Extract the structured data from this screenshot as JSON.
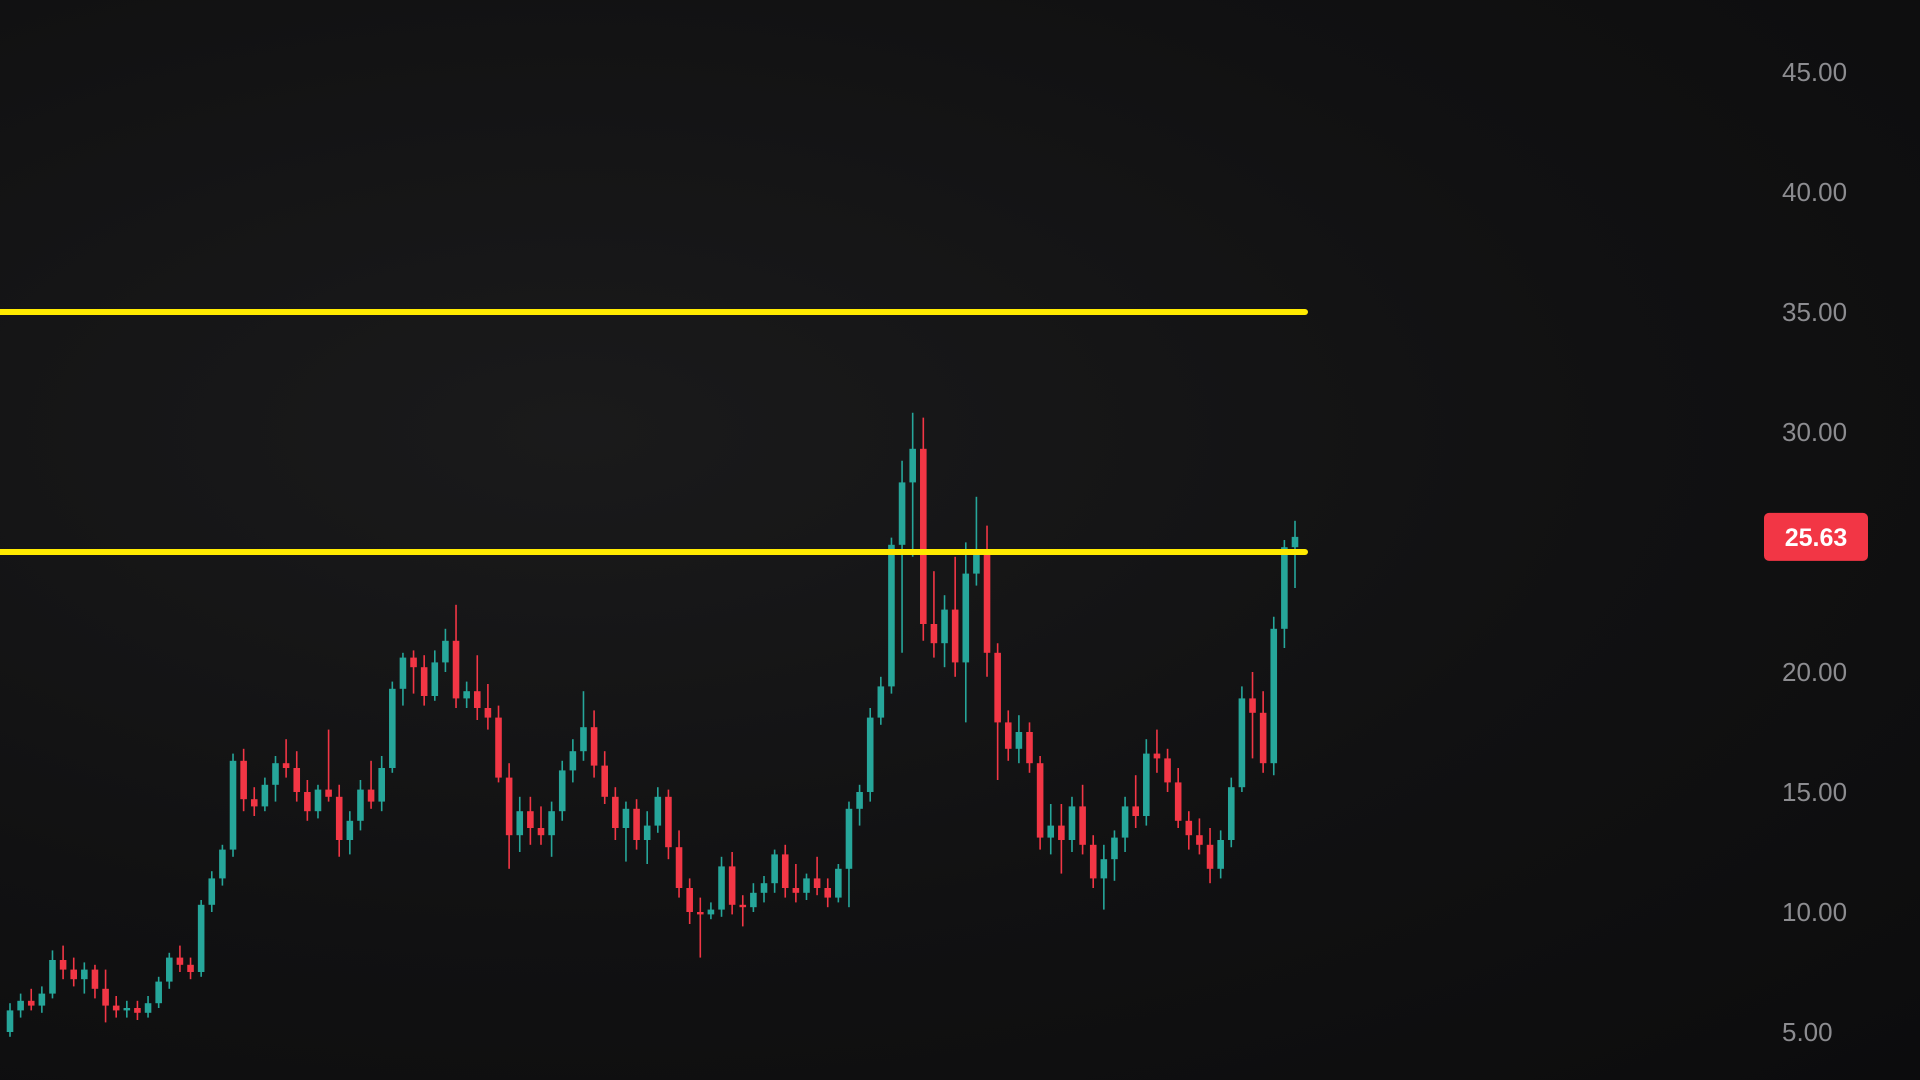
{
  "chart_data": {
    "type": "candlestick",
    "title": "",
    "xlabel": "",
    "ylabel": "",
    "ylim": [
      3,
      48
    ],
    "y_ticks": [
      "45.00",
      "40.00",
      "35.00",
      "30.00",
      "20.00",
      "15.00",
      "10.00",
      "5.00"
    ],
    "y_tick_values": [
      45,
      40,
      35,
      30,
      20,
      15,
      10,
      5
    ],
    "grid": false,
    "current_price": {
      "value": 25.63,
      "label": "25.63",
      "color": "#f23645"
    },
    "horizontal_lines": [
      {
        "value": 35.0,
        "color": "#ffea00"
      },
      {
        "value": 25.0,
        "color": "#ffea00"
      }
    ],
    "colors": {
      "up": "#26a69a",
      "down": "#f23645",
      "axis_text": "#8c8c90"
    },
    "candles": [
      [
        5.0,
        6.2,
        4.8,
        5.9
      ],
      [
        5.9,
        6.6,
        5.6,
        6.3
      ],
      [
        6.3,
        6.8,
        5.9,
        6.1
      ],
      [
        6.1,
        6.9,
        5.8,
        6.6
      ],
      [
        6.6,
        8.4,
        6.4,
        8.0
      ],
      [
        8.0,
        8.6,
        7.2,
        7.6
      ],
      [
        7.6,
        8.1,
        6.9,
        7.2
      ],
      [
        7.2,
        7.9,
        6.6,
        7.6
      ],
      [
        7.6,
        7.8,
        6.4,
        6.8
      ],
      [
        6.8,
        7.6,
        5.4,
        6.1
      ],
      [
        6.1,
        6.5,
        5.6,
        5.9
      ],
      [
        5.9,
        6.3,
        5.6,
        6.0
      ],
      [
        6.0,
        6.3,
        5.5,
        5.8
      ],
      [
        5.8,
        6.5,
        5.6,
        6.2
      ],
      [
        6.2,
        7.3,
        6.0,
        7.1
      ],
      [
        7.1,
        8.3,
        6.8,
        8.1
      ],
      [
        8.1,
        8.6,
        7.5,
        7.8
      ],
      [
        7.8,
        8.1,
        7.2,
        7.5
      ],
      [
        7.5,
        10.5,
        7.3,
        10.3
      ],
      [
        10.3,
        11.7,
        10.0,
        11.4
      ],
      [
        11.4,
        12.8,
        11.1,
        12.6
      ],
      [
        12.6,
        16.6,
        12.3,
        16.3
      ],
      [
        16.3,
        16.8,
        14.2,
        14.7
      ],
      [
        14.7,
        15.2,
        14.0,
        14.4
      ],
      [
        14.4,
        15.6,
        14.2,
        15.3
      ],
      [
        15.3,
        16.5,
        14.6,
        16.2
      ],
      [
        16.2,
        17.2,
        15.6,
        16.0
      ],
      [
        16.0,
        16.7,
        14.6,
        15.0
      ],
      [
        15.0,
        15.5,
        13.8,
        14.2
      ],
      [
        14.2,
        15.3,
        13.9,
        15.1
      ],
      [
        15.1,
        17.6,
        14.6,
        14.8
      ],
      [
        14.8,
        15.3,
        12.3,
        13.0
      ],
      [
        13.0,
        14.2,
        12.4,
        13.8
      ],
      [
        13.8,
        15.5,
        13.4,
        15.1
      ],
      [
        15.1,
        16.3,
        14.3,
        14.6
      ],
      [
        14.6,
        16.5,
        14.2,
        16.0
      ],
      [
        16.0,
        19.6,
        15.8,
        19.3
      ],
      [
        19.3,
        20.8,
        18.6,
        20.6
      ],
      [
        20.6,
        20.9,
        19.1,
        20.2
      ],
      [
        20.2,
        20.7,
        18.6,
        19.0
      ],
      [
        19.0,
        20.9,
        18.8,
        20.4
      ],
      [
        20.4,
        21.8,
        20.0,
        21.3
      ],
      [
        21.3,
        22.8,
        18.5,
        18.9
      ],
      [
        18.9,
        19.6,
        18.5,
        19.2
      ],
      [
        19.2,
        20.7,
        18.0,
        18.5
      ],
      [
        18.5,
        19.5,
        17.6,
        18.1
      ],
      [
        18.1,
        18.6,
        15.4,
        15.6
      ],
      [
        15.6,
        16.2,
        11.8,
        13.2
      ],
      [
        13.2,
        14.8,
        12.5,
        14.2
      ],
      [
        14.2,
        14.8,
        12.8,
        13.5
      ],
      [
        13.5,
        14.4,
        12.8,
        13.2
      ],
      [
        13.2,
        14.6,
        12.3,
        14.2
      ],
      [
        14.2,
        16.3,
        13.8,
        15.9
      ],
      [
        15.9,
        17.2,
        15.4,
        16.7
      ],
      [
        16.7,
        19.2,
        16.3,
        17.7
      ],
      [
        17.7,
        18.4,
        15.6,
        16.1
      ],
      [
        16.1,
        16.7,
        14.5,
        14.8
      ],
      [
        14.8,
        15.2,
        13.0,
        13.5
      ],
      [
        13.5,
        14.6,
        12.1,
        14.3
      ],
      [
        14.3,
        14.7,
        12.6,
        13.0
      ],
      [
        13.0,
        14.2,
        12.0,
        13.6
      ],
      [
        13.6,
        15.2,
        13.3,
        14.8
      ],
      [
        14.8,
        15.1,
        12.2,
        12.7
      ],
      [
        12.7,
        13.4,
        10.6,
        11.0
      ],
      [
        11.0,
        11.4,
        9.5,
        10.0
      ],
      [
        10.0,
        10.6,
        8.1,
        9.9
      ],
      [
        9.9,
        10.4,
        9.7,
        10.1
      ],
      [
        10.1,
        12.3,
        9.8,
        11.9
      ],
      [
        11.9,
        12.5,
        9.9,
        10.3
      ],
      [
        10.3,
        10.7,
        9.4,
        10.2
      ],
      [
        10.2,
        11.2,
        10.0,
        10.8
      ],
      [
        10.8,
        11.5,
        10.4,
        11.2
      ],
      [
        11.2,
        12.6,
        10.8,
        12.4
      ],
      [
        12.4,
        12.8,
        10.6,
        11.0
      ],
      [
        11.0,
        12.0,
        10.4,
        10.8
      ],
      [
        10.8,
        11.6,
        10.5,
        11.4
      ],
      [
        11.4,
        12.3,
        10.7,
        11.0
      ],
      [
        11.0,
        11.4,
        10.2,
        10.6
      ],
      [
        10.6,
        12.0,
        10.4,
        11.8
      ],
      [
        11.8,
        14.6,
        10.2,
        14.3
      ],
      [
        14.3,
        15.3,
        13.6,
        15.0
      ],
      [
        15.0,
        18.5,
        14.6,
        18.1
      ],
      [
        18.1,
        19.8,
        17.8,
        19.4
      ],
      [
        19.4,
        25.6,
        19.1,
        25.3
      ],
      [
        25.3,
        28.8,
        20.8,
        27.9
      ],
      [
        27.9,
        30.8,
        24.8,
        29.3
      ],
      [
        29.3,
        30.6,
        21.3,
        22.0
      ],
      [
        22.0,
        24.2,
        20.6,
        21.2
      ],
      [
        21.2,
        23.2,
        20.2,
        22.6
      ],
      [
        22.6,
        24.8,
        19.8,
        20.4
      ],
      [
        20.4,
        25.4,
        17.9,
        24.1
      ],
      [
        24.1,
        27.3,
        23.6,
        25.1
      ],
      [
        25.1,
        26.1,
        19.8,
        20.8
      ],
      [
        20.8,
        21.2,
        15.5,
        17.9
      ],
      [
        17.9,
        18.4,
        16.3,
        16.8
      ],
      [
        16.8,
        18.2,
        16.2,
        17.5
      ],
      [
        17.5,
        17.9,
        15.8,
        16.2
      ],
      [
        16.2,
        16.5,
        12.6,
        13.1
      ],
      [
        13.1,
        14.5,
        12.4,
        13.6
      ],
      [
        13.6,
        14.5,
        11.6,
        13.0
      ],
      [
        13.0,
        14.8,
        12.5,
        14.4
      ],
      [
        14.4,
        15.3,
        12.4,
        12.8
      ],
      [
        12.8,
        13.2,
        11.0,
        11.4
      ],
      [
        11.4,
        12.8,
        10.1,
        12.2
      ],
      [
        12.2,
        13.4,
        11.3,
        13.1
      ],
      [
        13.1,
        14.8,
        12.5,
        14.4
      ],
      [
        14.4,
        15.7,
        13.5,
        14.0
      ],
      [
        14.0,
        17.2,
        13.6,
        16.6
      ],
      [
        16.6,
        17.6,
        15.8,
        16.4
      ],
      [
        16.4,
        16.8,
        15.0,
        15.4
      ],
      [
        15.4,
        16.0,
        13.5,
        13.8
      ],
      [
        13.8,
        14.2,
        12.6,
        13.2
      ],
      [
        13.2,
        13.9,
        12.4,
        12.8
      ],
      [
        12.8,
        13.5,
        11.2,
        11.8
      ],
      [
        11.8,
        13.4,
        11.4,
        13.0
      ],
      [
        13.0,
        15.6,
        12.7,
        15.2
      ],
      [
        15.2,
        19.4,
        15.0,
        18.9
      ],
      [
        18.9,
        20.0,
        16.4,
        18.3
      ],
      [
        18.3,
        19.2,
        15.8,
        16.2
      ],
      [
        16.2,
        22.3,
        15.7,
        21.8
      ],
      [
        21.8,
        25.5,
        21.0,
        25.2
      ],
      [
        25.2,
        26.3,
        23.5,
        25.63
      ]
    ]
  }
}
